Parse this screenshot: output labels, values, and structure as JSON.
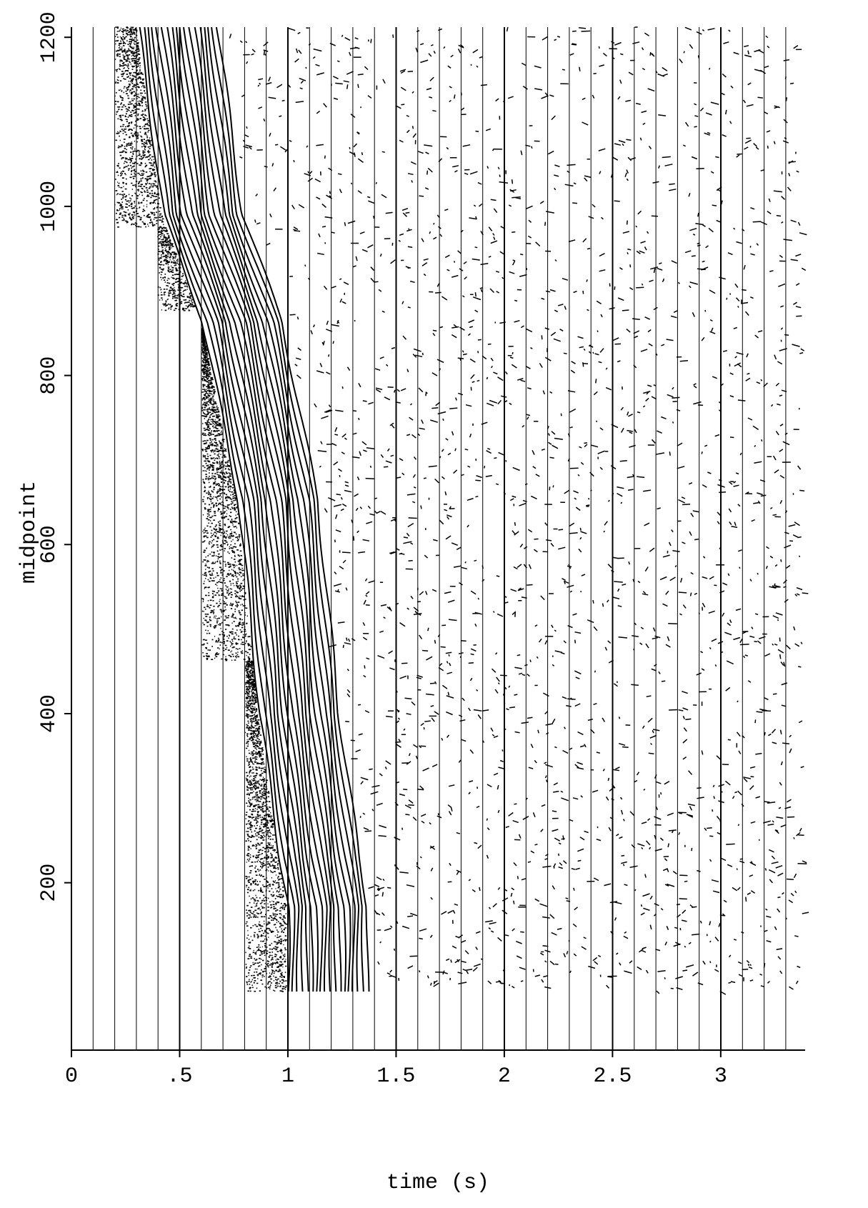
{
  "chart_data": {
    "type": "seismic",
    "xlabel": "time (s)",
    "ylabel": "midpoint",
    "xlim": [
      0,
      3.39
    ],
    "xticks": [
      0,
      {
        "value": 0.5,
        "label": ".5"
      },
      1,
      1.5,
      2,
      2.5,
      3
    ],
    "ylim": [
      2,
      1212
    ],
    "yticks": [
      200,
      400,
      600,
      800,
      1000,
      1200
    ],
    "color": "#000000"
  }
}
